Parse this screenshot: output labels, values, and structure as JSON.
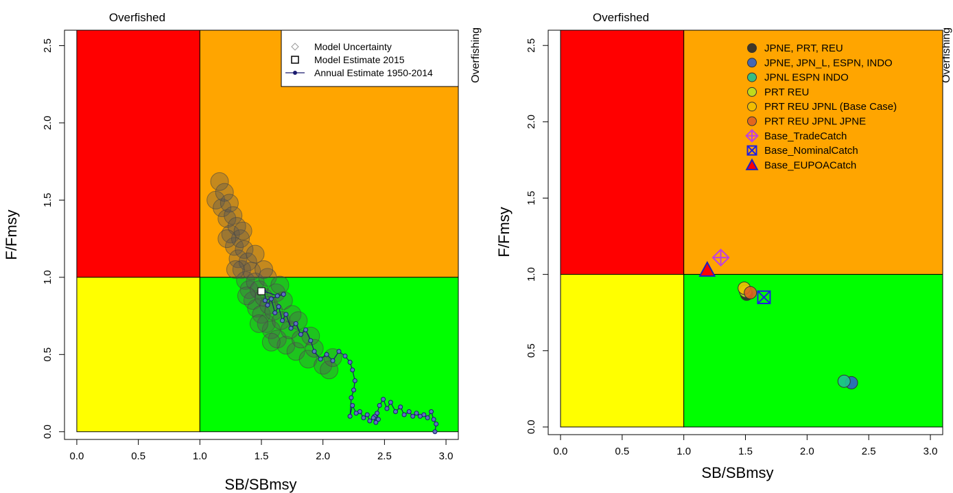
{
  "chart_data": [
    {
      "type": "scatter",
      "panel_id": "left",
      "xlabel": "SB/SBmsy",
      "ylabel": "F/Fmsy",
      "xlim": [
        -0.1,
        3.1
      ],
      "ylim": [
        -0.05,
        2.6
      ],
      "x_ticks": [
        {
          "value": 0.0,
          "label": "0.0"
        },
        {
          "value": 0.5,
          "label": "0.5"
        },
        {
          "value": 1.0,
          "label": "1.0"
        },
        {
          "value": 1.5,
          "label": "1.5"
        },
        {
          "value": 2.0,
          "label": "2.0"
        },
        {
          "value": 2.5,
          "label": "2.5"
        },
        {
          "value": 3.0,
          "label": "3.0"
        }
      ],
      "y_ticks": [
        {
          "value": 0.0,
          "label": "0.0"
        },
        {
          "value": 0.5,
          "label": "0.5"
        },
        {
          "value": 1.0,
          "label": "1.0"
        },
        {
          "value": 1.5,
          "label": "1.5"
        },
        {
          "value": 2.0,
          "label": "2.0"
        },
        {
          "value": 2.5,
          "label": "2.5"
        }
      ],
      "annotations": {
        "top": "Overfished",
        "right": "Overfishing"
      },
      "quadrants": [
        {
          "name": "red",
          "color": "#ff0000",
          "x": [
            0,
            1
          ],
          "y": [
            1,
            2.6
          ]
        },
        {
          "name": "orange",
          "color": "#ffa500",
          "x": [
            1,
            3.1
          ],
          "y": [
            1,
            2.6
          ]
        },
        {
          "name": "yellow",
          "color": "#ffff00",
          "x": [
            0,
            1
          ],
          "y": [
            0,
            1
          ]
        },
        {
          "name": "green",
          "color": "#00ff00",
          "x": [
            1,
            3.1
          ],
          "y": [
            0,
            1
          ]
        }
      ],
      "legend": {
        "position": "top-right",
        "entries": [
          {
            "label": "Model Uncertainty",
            "symbol": "diamond-open-grey"
          },
          {
            "label": "Model Estimate 2015",
            "symbol": "square-open"
          },
          {
            "label": "Annual Estimate 1950-2014",
            "symbol": "line-point-navy"
          }
        ]
      },
      "uncertainty_cloud": {
        "color": "#555555",
        "points": [
          {
            "x": 1.13,
            "y": 1.5
          },
          {
            "x": 1.16,
            "y": 1.62
          },
          {
            "x": 1.18,
            "y": 1.45
          },
          {
            "x": 1.2,
            "y": 1.55
          },
          {
            "x": 1.22,
            "y": 1.38
          },
          {
            "x": 1.24,
            "y": 1.48
          },
          {
            "x": 1.25,
            "y": 1.28
          },
          {
            "x": 1.27,
            "y": 1.4
          },
          {
            "x": 1.28,
            "y": 1.2
          },
          {
            "x": 1.3,
            "y": 1.33
          },
          {
            "x": 1.31,
            "y": 1.12
          },
          {
            "x": 1.33,
            "y": 1.25
          },
          {
            "x": 1.34,
            "y": 1.05
          },
          {
            "x": 1.36,
            "y": 1.18
          },
          {
            "x": 1.37,
            "y": 0.98
          },
          {
            "x": 1.39,
            "y": 1.1
          },
          {
            "x": 1.4,
            "y": 0.92
          },
          {
            "x": 1.42,
            "y": 1.04
          },
          {
            "x": 1.43,
            "y": 0.85
          },
          {
            "x": 1.45,
            "y": 0.97
          },
          {
            "x": 1.46,
            "y": 0.8
          },
          {
            "x": 1.48,
            "y": 0.92
          },
          {
            "x": 1.5,
            "y": 0.76
          },
          {
            "x": 1.52,
            "y": 0.87
          },
          {
            "x": 1.54,
            "y": 0.7
          },
          {
            "x": 1.56,
            "y": 0.82
          },
          {
            "x": 1.58,
            "y": 0.66
          },
          {
            "x": 1.6,
            "y": 0.78
          },
          {
            "x": 1.63,
            "y": 0.6
          },
          {
            "x": 1.66,
            "y": 0.72
          },
          {
            "x": 1.7,
            "y": 0.56
          },
          {
            "x": 1.73,
            "y": 0.66
          },
          {
            "x": 1.78,
            "y": 0.52
          },
          {
            "x": 1.82,
            "y": 0.6
          },
          {
            "x": 1.88,
            "y": 0.47
          },
          {
            "x": 1.93,
            "y": 0.54
          },
          {
            "x": 2.0,
            "y": 0.43
          },
          {
            "x": 2.05,
            "y": 0.4
          },
          {
            "x": 1.35,
            "y": 1.3
          },
          {
            "x": 1.45,
            "y": 1.15
          },
          {
            "x": 1.55,
            "y": 1.0
          },
          {
            "x": 1.62,
            "y": 0.9
          },
          {
            "x": 1.68,
            "y": 0.85
          },
          {
            "x": 1.75,
            "y": 0.76
          },
          {
            "x": 1.38,
            "y": 0.88
          },
          {
            "x": 1.48,
            "y": 0.7
          },
          {
            "x": 1.58,
            "y": 0.58
          },
          {
            "x": 1.22,
            "y": 1.25
          },
          {
            "x": 1.29,
            "y": 1.05
          },
          {
            "x": 1.52,
            "y": 1.05
          },
          {
            "x": 1.65,
            "y": 0.95
          },
          {
            "x": 1.8,
            "y": 0.72
          },
          {
            "x": 1.9,
            "y": 0.62
          },
          {
            "x": 2.08,
            "y": 0.48
          }
        ]
      },
      "model_estimate_2015": {
        "x": 1.5,
        "y": 0.91
      },
      "annual_series": {
        "color": "#1a1a6e",
        "points": [
          {
            "x": 2.91,
            "y": 0.0
          },
          {
            "x": 2.92,
            "y": 0.05
          },
          {
            "x": 2.9,
            "y": 0.08
          },
          {
            "x": 2.88,
            "y": 0.13
          },
          {
            "x": 2.85,
            "y": 0.09
          },
          {
            "x": 2.82,
            "y": 0.11
          },
          {
            "x": 2.79,
            "y": 0.1
          },
          {
            "x": 2.76,
            "y": 0.12
          },
          {
            "x": 2.73,
            "y": 0.1
          },
          {
            "x": 2.7,
            "y": 0.13
          },
          {
            "x": 2.66,
            "y": 0.11
          },
          {
            "x": 2.63,
            "y": 0.16
          },
          {
            "x": 2.59,
            "y": 0.13
          },
          {
            "x": 2.55,
            "y": 0.19
          },
          {
            "x": 2.52,
            "y": 0.15
          },
          {
            "x": 2.49,
            "y": 0.21
          },
          {
            "x": 2.46,
            "y": 0.17
          },
          {
            "x": 2.44,
            "y": 0.12
          },
          {
            "x": 2.45,
            "y": 0.08
          },
          {
            "x": 2.42,
            "y": 0.1
          },
          {
            "x": 2.43,
            "y": 0.06
          },
          {
            "x": 2.41,
            "y": 0.09
          },
          {
            "x": 2.38,
            "y": 0.07
          },
          {
            "x": 2.36,
            "y": 0.11
          },
          {
            "x": 2.33,
            "y": 0.09
          },
          {
            "x": 2.3,
            "y": 0.13
          },
          {
            "x": 2.27,
            "y": 0.12
          },
          {
            "x": 2.24,
            "y": 0.17
          },
          {
            "x": 2.22,
            "y": 0.1
          },
          {
            "x": 2.23,
            "y": 0.22
          },
          {
            "x": 2.25,
            "y": 0.27
          },
          {
            "x": 2.26,
            "y": 0.33
          },
          {
            "x": 2.24,
            "y": 0.4
          },
          {
            "x": 2.22,
            "y": 0.45
          },
          {
            "x": 2.18,
            "y": 0.49
          },
          {
            "x": 2.13,
            "y": 0.52
          },
          {
            "x": 2.08,
            "y": 0.46
          },
          {
            "x": 2.03,
            "y": 0.5
          },
          {
            "x": 1.98,
            "y": 0.47
          },
          {
            "x": 1.93,
            "y": 0.52
          },
          {
            "x": 1.9,
            "y": 0.59
          },
          {
            "x": 1.86,
            "y": 0.66
          },
          {
            "x": 1.82,
            "y": 0.63
          },
          {
            "x": 1.78,
            "y": 0.7
          },
          {
            "x": 1.74,
            "y": 0.67
          },
          {
            "x": 1.7,
            "y": 0.76
          },
          {
            "x": 1.67,
            "y": 0.72
          },
          {
            "x": 1.64,
            "y": 0.81
          },
          {
            "x": 1.61,
            "y": 0.77
          },
          {
            "x": 1.58,
            "y": 0.86
          },
          {
            "x": 1.55,
            "y": 0.82
          },
          {
            "x": 1.52,
            "y": 0.91
          },
          {
            "x": 1.63,
            "y": 0.88
          },
          {
            "x": 1.68,
            "y": 0.89
          },
          {
            "x": 1.53,
            "y": 0.85
          }
        ]
      }
    },
    {
      "type": "scatter",
      "panel_id": "right",
      "xlabel": "SB/SBmsy",
      "ylabel": "F/Fmsy",
      "xlim": [
        -0.1,
        3.1
      ],
      "ylim": [
        -0.05,
        2.6
      ],
      "x_ticks": [
        {
          "value": 0.0,
          "label": "0.0"
        },
        {
          "value": 0.5,
          "label": "0.5"
        },
        {
          "value": 1.0,
          "label": "1.0"
        },
        {
          "value": 1.5,
          "label": "1.5"
        },
        {
          "value": 2.0,
          "label": "2.0"
        },
        {
          "value": 2.5,
          "label": "2.5"
        },
        {
          "value": 3.0,
          "label": "3.0"
        }
      ],
      "y_ticks": [
        {
          "value": 0.0,
          "label": "0.0"
        },
        {
          "value": 0.5,
          "label": "0.5"
        },
        {
          "value": 1.0,
          "label": "1.0"
        },
        {
          "value": 1.5,
          "label": "1.5"
        },
        {
          "value": 2.0,
          "label": "2.0"
        },
        {
          "value": 2.5,
          "label": "2.5"
        }
      ],
      "annotations": {
        "top": "Overfished",
        "right": "Overfishing"
      },
      "quadrants": [
        {
          "name": "red",
          "color": "#ff0000",
          "x": [
            0,
            1
          ],
          "y": [
            1,
            2.6
          ]
        },
        {
          "name": "orange",
          "color": "#ffa500",
          "x": [
            1,
            3.1
          ],
          "y": [
            1,
            2.6
          ]
        },
        {
          "name": "yellow",
          "color": "#ffff00",
          "x": [
            0,
            1
          ],
          "y": [
            0,
            1
          ]
        },
        {
          "name": "green",
          "color": "#00ff00",
          "x": [
            1,
            3.1
          ],
          "y": [
            0,
            1
          ]
        }
      ],
      "legend": {
        "position": "top-right",
        "entries": [
          {
            "label": "JPNE, PRT, REU",
            "symbol": "circle",
            "color": "#2b2b2b"
          },
          {
            "label": "JPNE, JPN_L, ESPN, INDO",
            "symbol": "circle",
            "color": "#3060c8"
          },
          {
            "label": "JPNL ESPN INDO",
            "symbol": "circle",
            "color": "#20c090"
          },
          {
            "label": "PRT REU",
            "symbol": "circle",
            "color": "#b8e020"
          },
          {
            "label": "PRT REU JPNL (Base Case)",
            "symbol": "circle",
            "color": "#f0c000"
          },
          {
            "label": "PRT REU JPNL JPNE",
            "symbol": "circle",
            "color": "#e06020"
          },
          {
            "label": "Base_TradeCatch",
            "symbol": "diamond-plus",
            "color": "#c040e0"
          },
          {
            "label": "Base_NominalCatch",
            "symbol": "square-x",
            "color": "#2020e0"
          },
          {
            "label": "Base_EUPOACatch",
            "symbol": "triangle",
            "color": "#ff0000"
          }
        ]
      },
      "points": [
        {
          "series": "JPNE, PRT, REU",
          "x": 1.51,
          "y": 0.87
        },
        {
          "series": "JPNE, JPN_L, ESPN, INDO",
          "x": 2.36,
          "y": 0.29
        },
        {
          "series": "JPNL ESPN INDO",
          "x": 2.3,
          "y": 0.3
        },
        {
          "series": "PRT REU",
          "x": 1.5,
          "y": 0.89
        },
        {
          "series": "PRT REU JPNL (Base Case)",
          "x": 1.49,
          "y": 0.91
        },
        {
          "series": "PRT REU JPNL JPNE",
          "x": 1.54,
          "y": 0.88
        },
        {
          "series": "Base_TradeCatch",
          "x": 1.3,
          "y": 1.11
        },
        {
          "series": "Base_NominalCatch",
          "x": 1.65,
          "y": 0.85
        },
        {
          "series": "Base_EUPOACatch",
          "x": 1.19,
          "y": 1.03
        }
      ]
    }
  ]
}
